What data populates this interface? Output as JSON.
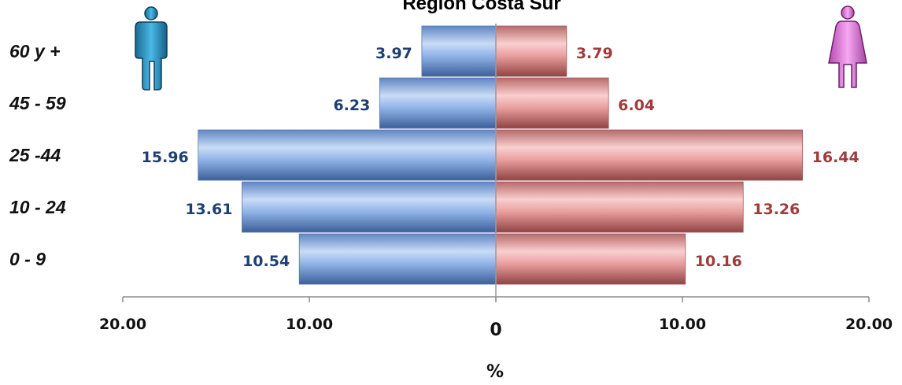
{
  "chart_data": {
    "type": "bar",
    "orientation": "horizontal-population-pyramid",
    "title": "Región Costa Sur",
    "categories": [
      "60 y +",
      "45 - 59",
      "25 -44",
      "10 - 24",
      "0 - 9"
    ],
    "series": [
      {
        "values": [
          3.97,
          6.23,
          15.96,
          13.61,
          10.54
        ],
        "color": "#7aa6e0",
        "label_color": "#1f3f73",
        "side": "left"
      },
      {
        "values": [
          3.79,
          6.04,
          16.44,
          13.26,
          10.16
        ],
        "color": "#e79a9a",
        "label_color": "#9e3b3b",
        "side": "right"
      }
    ],
    "value_labels": {
      "left": [
        "3.97",
        "6.23",
        "15.96",
        "13.61",
        "10.54"
      ],
      "right": [
        "3.79",
        "6.04",
        "16.44",
        "13.26",
        "10.16"
      ]
    },
    "x_ticks": [
      "20.00",
      "10.00",
      "0",
      "10.00",
      "20.00"
    ],
    "xlabel": "%",
    "xlim": [
      -20,
      20
    ],
    "icons": {
      "left": "male-figure-icon",
      "right": "female-figure-icon"
    }
  }
}
